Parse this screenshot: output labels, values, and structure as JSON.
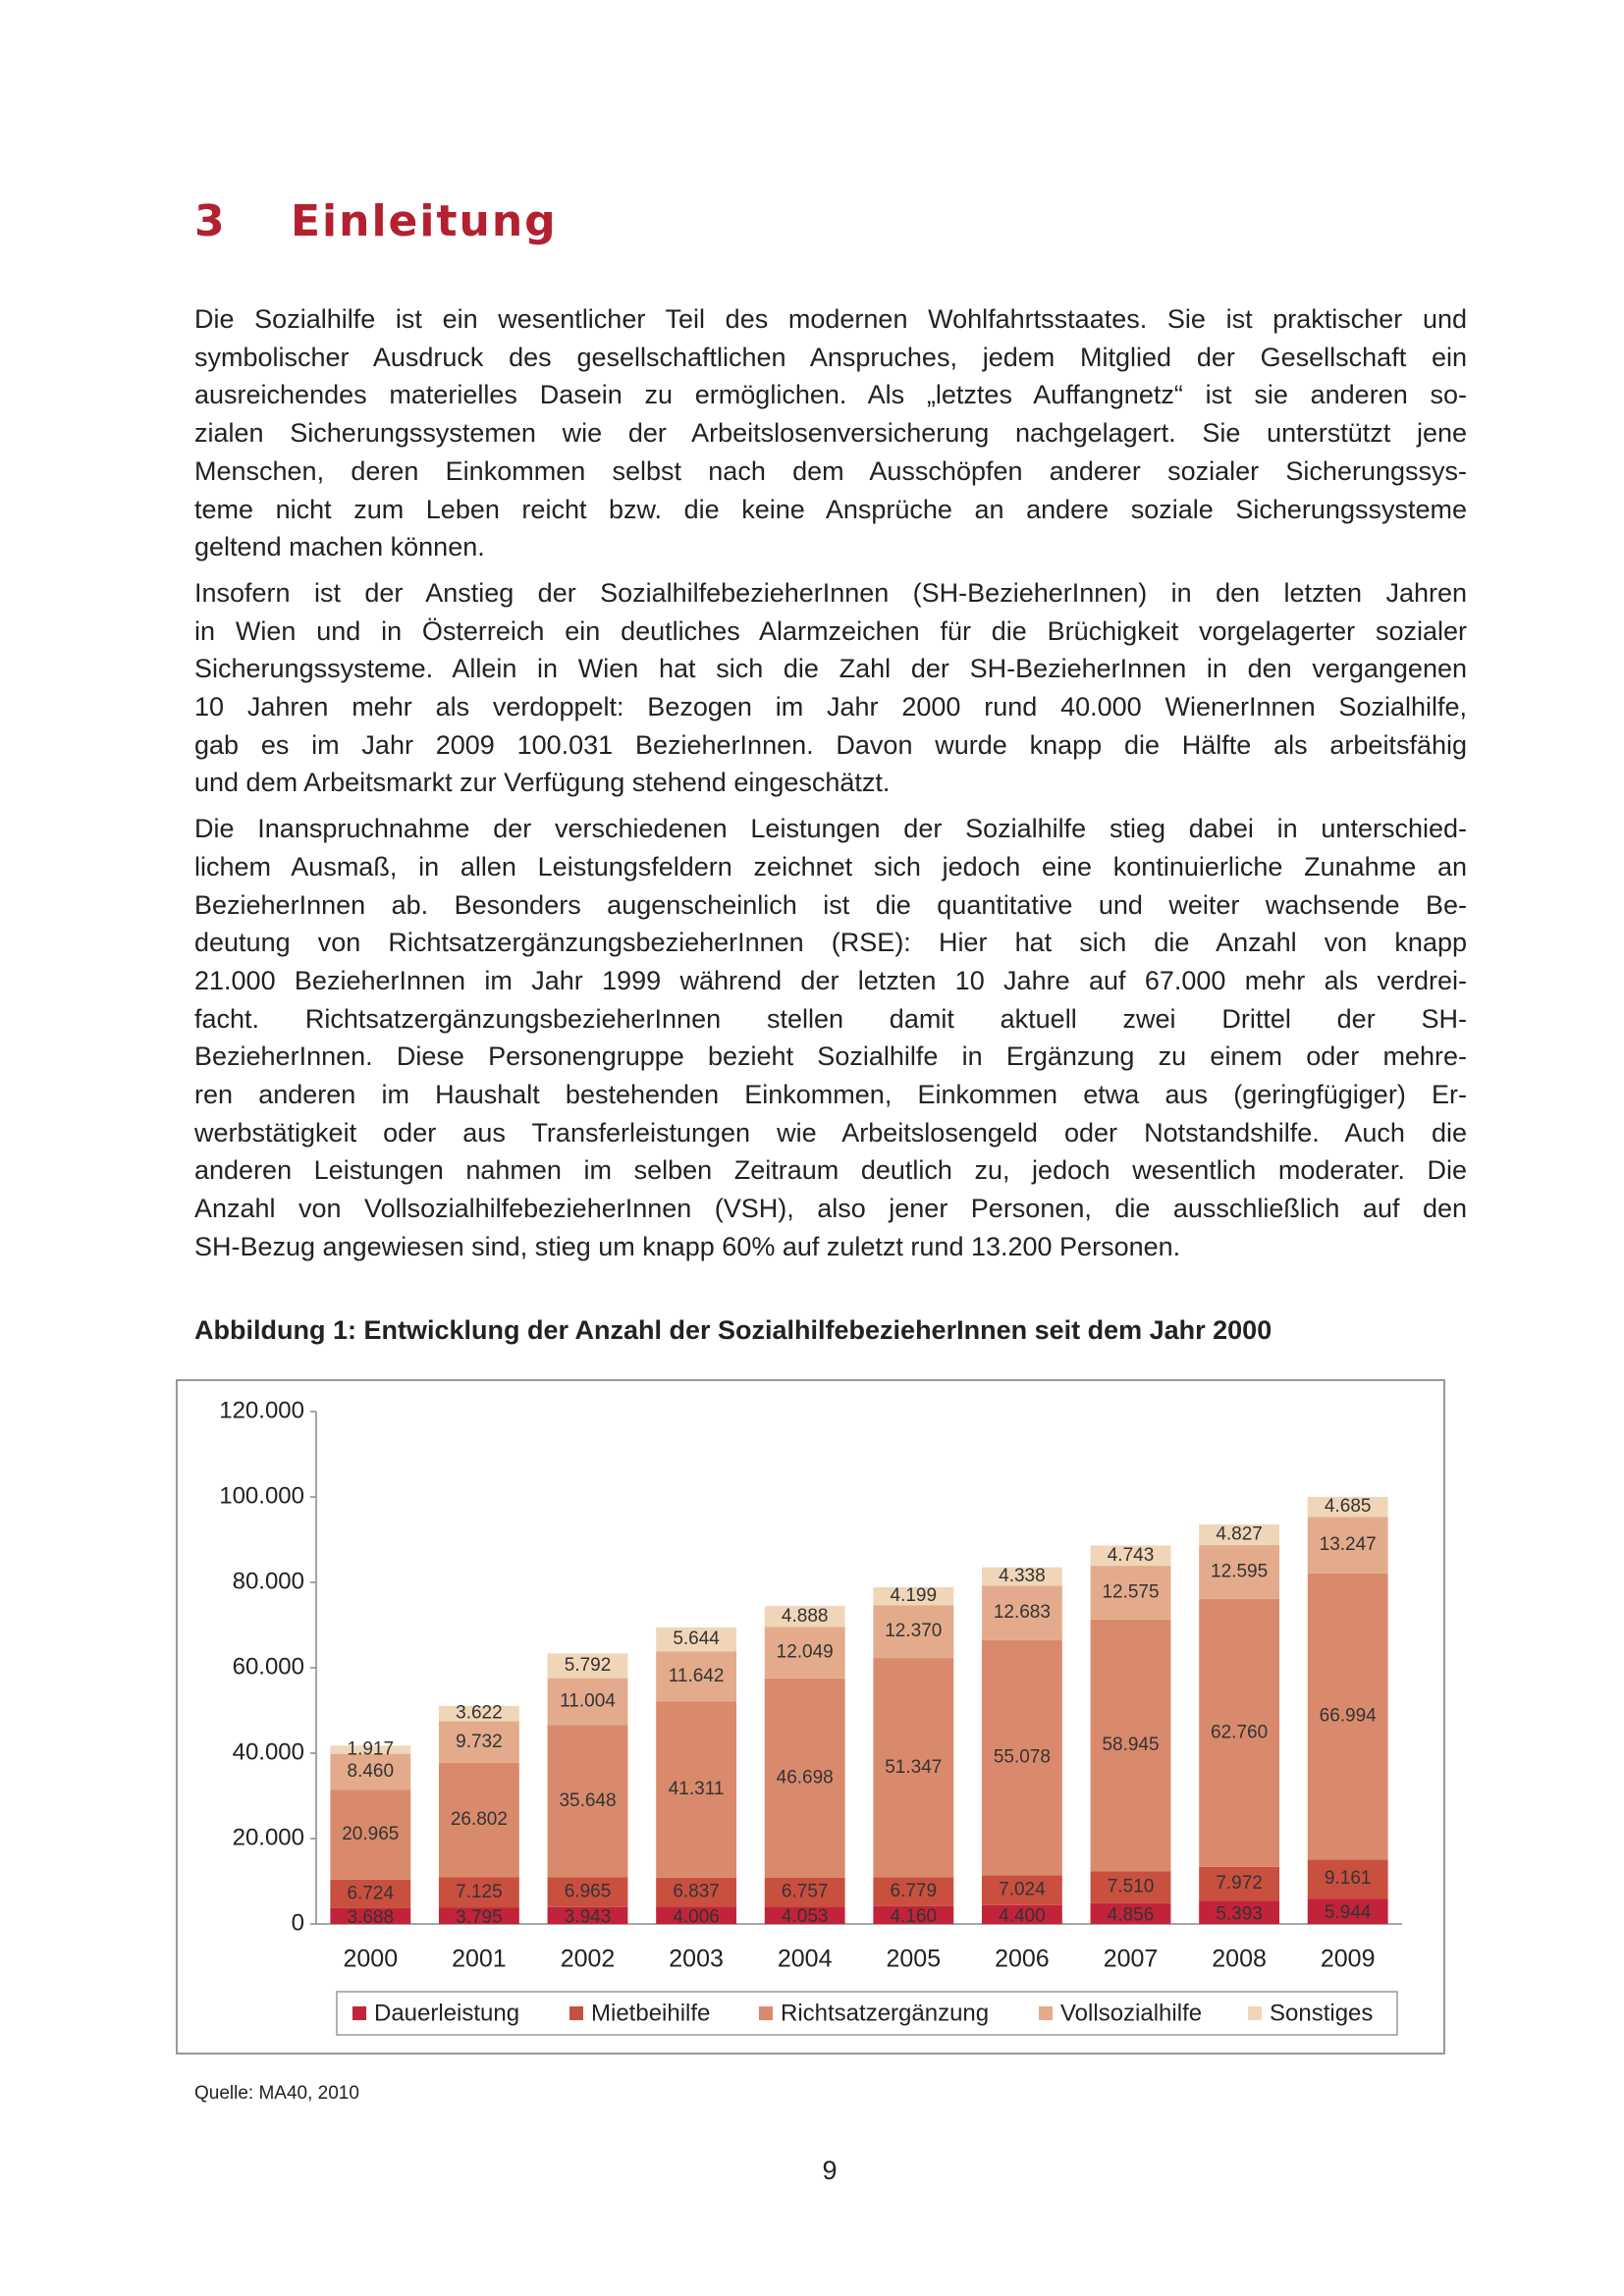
{
  "heading": {
    "number": "3",
    "title": "Einleitung"
  },
  "paragraphs": [
    [
      "Die Sozialhilfe ist ein wesentlicher Teil des modernen Wohlfahrtsstaates. Sie ist praktischer und",
      "symbolischer Ausdruck des gesellschaftlichen Anspruches, jedem Mitglied der Gesellschaft ein",
      "ausreichendes materielles Dasein zu ermöglichen. Als „letztes Auffangnetz“ ist sie anderen so-",
      "zialen Sicherungssystemen wie der Arbeitslosenversicherung nachgelagert. Sie unterstützt jene",
      "Menschen, deren Einkommen selbst nach dem Ausschöpfen anderer sozialer Sicherungssys-",
      "teme nicht zum Leben reicht bzw. die keine Ansprüche an andere soziale Sicherungssysteme",
      "geltend machen können."
    ],
    [
      "Insofern ist der Anstieg der SozialhilfebezieherInnen (SH-BezieherInnen) in den letzten Jahren",
      "in Wien und in Österreich ein deutliches Alarmzeichen für die Brüchigkeit vorgelagerter sozialer",
      "Sicherungssysteme. Allein in Wien hat sich die Zahl der SH-BezieherInnen in den vergangenen",
      "10 Jahren mehr als verdoppelt: Bezogen im Jahr 2000 rund 40.000 WienerInnen Sozialhilfe,",
      "gab es im Jahr 2009 100.031 BezieherInnen. Davon wurde knapp die Hälfte als arbeitsfähig",
      "und dem Arbeitsmarkt zur Verfügung stehend eingeschätzt."
    ],
    [
      "Die Inanspruchnahme der verschiedenen Leistungen der Sozialhilfe stieg dabei in unterschied-",
      "lichem Ausmaß, in allen Leistungsfeldern zeichnet sich jedoch eine kontinuierliche Zunahme an",
      "BezieherInnen ab. Besonders augenscheinlich ist die quantitative und weiter wachsende Be-",
      "deutung von RichtsatzergänzungsbezieherInnen (RSE): Hier hat sich die Anzahl von knapp",
      "21.000 BezieherInnen im Jahr 1999 während der letzten 10 Jahre auf 67.000 mehr als verdrei-",
      "facht. RichtsatzergänzungsbezieherInnen stellen damit aktuell zwei Drittel der SH-",
      "BezieherInnen. Diese Personengruppe bezieht Sozialhilfe in Ergänzung zu einem oder mehre-",
      "ren anderen im Haushalt bestehenden Einkommen, Einkommen etwa aus (geringfügiger) Er-",
      "werbstätigkeit oder aus Transferleistungen wie Arbeitslosengeld oder Notstandshilfe. Auch die",
      "anderen Leistungen nahmen im selben Zeitraum deutlich zu, jedoch wesentlich moderater. Die",
      "Anzahl von VollsozialhilfebezieherInnen (VSH), also jener Personen, die ausschließlich auf den",
      "SH-Bezug angewiesen sind, stieg um knapp 60% auf zuletzt rund 13.200 Personen."
    ]
  ],
  "figure": {
    "caption": "Abbildung 1: Entwicklung der Anzahl der SozialhilfebezieherInnen seit dem Jahr 2000",
    "source": "Quelle: MA40, 2010"
  },
  "chart_data": {
    "type": "stacked_bar",
    "categories": [
      "2000",
      "2001",
      "2002",
      "2003",
      "2004",
      "2005",
      "2006",
      "2007",
      "2008",
      "2009"
    ],
    "series": [
      {
        "name": "Dauerleistung",
        "color": "#c2233a",
        "values": [
          3688,
          3795,
          3943,
          4006,
          4053,
          4160,
          4400,
          4856,
          5393,
          5944
        ],
        "value_labels": [
          "3.688",
          "3.795",
          "3.943",
          "4.006",
          "4.053",
          "4.160",
          "4.400",
          "4.856",
          "5.393",
          "5.944"
        ]
      },
      {
        "name": "Mietbeihilfe",
        "color": "#c94f3f",
        "values": [
          6724,
          7125,
          6965,
          6837,
          6757,
          6779,
          7024,
          7510,
          7972,
          9161
        ],
        "value_labels": [
          "6.724",
          "7.125",
          "6.965",
          "6.837",
          "6.757",
          "6.779",
          "7.024",
          "7.510",
          "7.972",
          "9.161"
        ]
      },
      {
        "name": "Richtsatzergänzung",
        "color": "#d98a6c",
        "values": [
          20965,
          26802,
          35648,
          41311,
          46698,
          51347,
          55078,
          58945,
          62760,
          66994
        ],
        "value_labels": [
          "20.965",
          "26.802",
          "35.648",
          "41.311",
          "46.698",
          "51.347",
          "55.078",
          "58.945",
          "62.760",
          "66.994"
        ]
      },
      {
        "name": "Vollsozialhilfe",
        "color": "#e3ab8b",
        "values": [
          8460,
          9732,
          11004,
          11642,
          12049,
          12370,
          12683,
          12575,
          12595,
          13247
        ],
        "value_labels": [
          "8.460",
          "9.732",
          "11.004",
          "11.642",
          "12.049",
          "12.370",
          "12.683",
          "12.575",
          "12.595",
          "13.247"
        ]
      },
      {
        "name": "Sonstiges",
        "color": "#f0d5b8",
        "values": [
          1917,
          3622,
          5792,
          5644,
          4888,
          4199,
          4338,
          4743,
          4827,
          4685
        ],
        "value_labels": [
          "1.917",
          "3.622",
          "5.792",
          "5.644",
          "4.888",
          "4.199",
          "4.338",
          "4.743",
          "4.827",
          "4.685"
        ]
      }
    ],
    "ylim": [
      0,
      120000
    ],
    "yticks": [
      0,
      {
        "value": 20000,
        "label": "20.000"
      },
      {
        "value": 40000,
        "label": "40.000"
      },
      {
        "value": 60000,
        "label": "60.000"
      },
      {
        "value": 80000,
        "label": "80.000"
      },
      {
        "value": 100000,
        "label": "100.000"
      },
      {
        "value": 120000,
        "label": "120.000"
      }
    ],
    "grid": false,
    "legend": "bottom"
  },
  "page_number": "9"
}
